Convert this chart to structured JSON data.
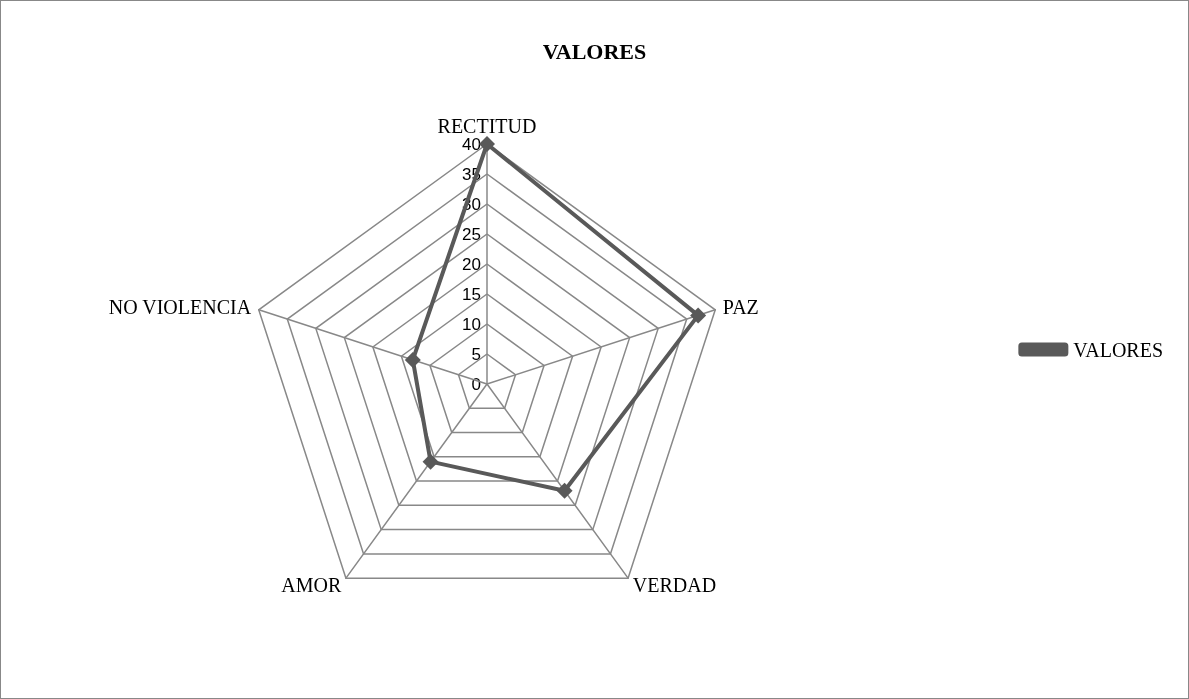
{
  "chart_data": {
    "type": "radar",
    "title": "VALORES",
    "categories": [
      "RECTITUD",
      "PAZ",
      "VERDAD",
      "AMOR",
      "NO VIOLENCIA"
    ],
    "series": [
      {
        "name": "VALORES",
        "color": "#595959",
        "values": [
          40,
          37,
          22,
          16,
          13
        ]
      }
    ],
    "ylim": [
      0,
      40
    ],
    "yticks": [
      0,
      5,
      10,
      15,
      20,
      25,
      30,
      35,
      40
    ],
    "legend": "right",
    "marker": "diamond",
    "line_style": "solid",
    "grid": true
  }
}
